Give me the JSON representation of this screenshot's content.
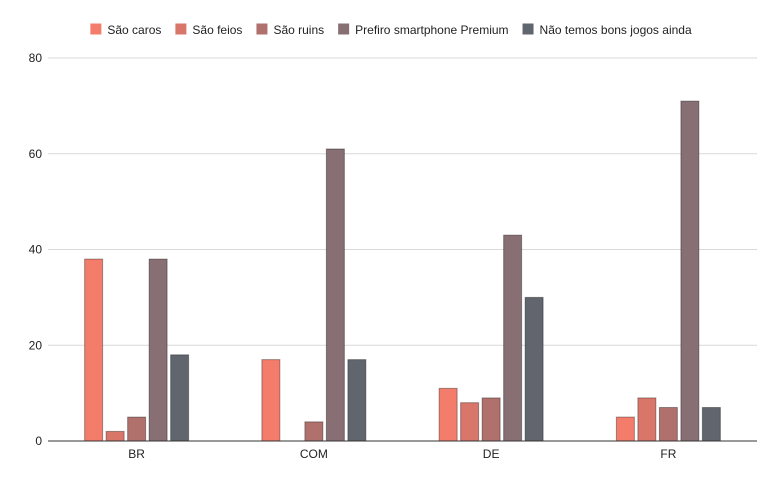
{
  "chart_data": {
    "type": "bar",
    "title": "",
    "xlabel": "",
    "ylabel": "",
    "ylim": [
      0,
      80
    ],
    "yticks": [
      0,
      20,
      40,
      60,
      80
    ],
    "grid": true,
    "legend_position": "top-center",
    "categories": [
      "BR",
      "COM",
      "DE",
      "FR"
    ],
    "series": [
      {
        "name": "São caros",
        "color": "#f47c6a",
        "values": [
          38,
          17,
          11,
          5
        ]
      },
      {
        "name": "São feios",
        "color": "#d9766a",
        "values": [
          2,
          0,
          8,
          9
        ]
      },
      {
        "name": "São ruins",
        "color": "#b0716d",
        "values": [
          5,
          4,
          9,
          7
        ]
      },
      {
        "name": "Prefiro smartphone Premium",
        "color": "#876f74",
        "values": [
          38,
          61,
          43,
          71
        ]
      },
      {
        "name": "Não temos bons jogos ainda",
        "color": "#60656e",
        "values": [
          18,
          17,
          30,
          7
        ]
      }
    ]
  }
}
